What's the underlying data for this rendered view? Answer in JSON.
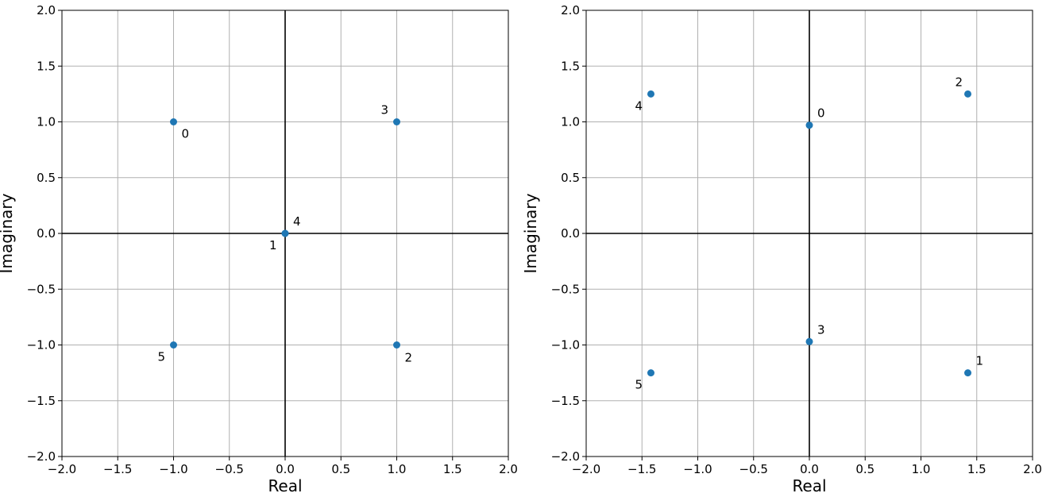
{
  "chart_data": [
    {
      "type": "scatter",
      "xlabel": "Real",
      "ylabel": "Imaginary",
      "xlim": [
        -2.0,
        2.0
      ],
      "ylim": [
        -2.0,
        2.0
      ],
      "xticks": [
        "−2.0",
        "−1.5",
        "−1.0",
        "−0.5",
        "0.0",
        "0.5",
        "1.0",
        "1.5",
        "2.0"
      ],
      "yticks": [
        "−2.0",
        "−1.5",
        "−1.0",
        "−0.5",
        "0.0",
        "0.5",
        "1.0",
        "1.5",
        "2.0"
      ],
      "grid": true,
      "color": "#1f77b4",
      "points": [
        {
          "label": "0",
          "x": -1.0,
          "y": 1.0
        },
        {
          "label": "1",
          "x": 0.0,
          "y": 0.0
        },
        {
          "label": "2",
          "x": 1.0,
          "y": -1.0
        },
        {
          "label": "3",
          "x": 1.0,
          "y": 1.0
        },
        {
          "label": "4",
          "x": 0.0,
          "y": 0.0
        },
        {
          "label": "5",
          "x": -1.0,
          "y": -1.0
        }
      ]
    },
    {
      "type": "scatter",
      "xlabel": "Real",
      "ylabel": "Imaginary",
      "xlim": [
        -2.0,
        2.0
      ],
      "ylim": [
        -2.0,
        2.0
      ],
      "xticks": [
        "−2.0",
        "−1.5",
        "−1.0",
        "−0.5",
        "0.0",
        "0.5",
        "1.0",
        "1.5",
        "2.0"
      ],
      "yticks": [
        "−2.0",
        "−1.5",
        "−1.0",
        "−0.5",
        "0.0",
        "0.5",
        "1.0",
        "1.5",
        "2.0"
      ],
      "grid": true,
      "color": "#1f77b4",
      "points": [
        {
          "label": "0",
          "x": 0.0,
          "y": 0.97
        },
        {
          "label": "1",
          "x": 1.42,
          "y": -1.25
        },
        {
          "label": "2",
          "x": 1.42,
          "y": 1.25
        },
        {
          "label": "3",
          "x": 0.0,
          "y": -0.97
        },
        {
          "label": "4",
          "x": -1.42,
          "y": 1.25
        },
        {
          "label": "5",
          "x": -1.42,
          "y": -1.25
        }
      ]
    }
  ]
}
